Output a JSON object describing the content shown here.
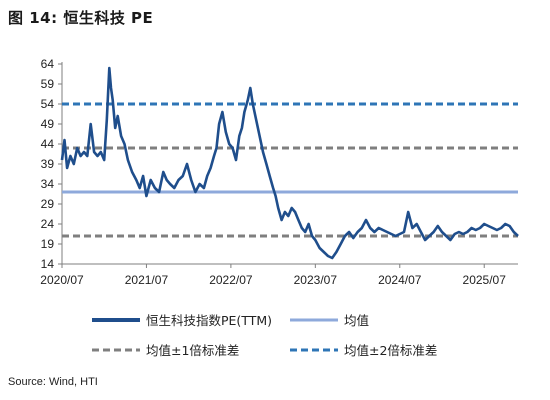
{
  "figure": {
    "title": "图 14:  恒生科技 PE",
    "source": "Source: Wind, HTI"
  },
  "chart_data": {
    "type": "line",
    "title": "恒生科技 PE",
    "x_ticks": [
      "2020/07",
      "2021/07",
      "2022/07",
      "2023/07",
      "2024/07",
      "2025/07"
    ],
    "y_ticks": [
      14,
      19,
      24,
      29,
      34,
      39,
      44,
      49,
      54,
      59,
      64
    ],
    "ylim": [
      14,
      64
    ],
    "x_range_years": [
      2020.5,
      2025.9
    ],
    "legend": [
      {
        "label": "恒生科技指数PE(TTM)",
        "color": "#1F4E8C",
        "style": "solid-thick"
      },
      {
        "label": "均值",
        "color": "#8EA9DB",
        "style": "solid"
      },
      {
        "label": "均值±1倍标准差",
        "color": "#7F7F7F",
        "style": "dashed"
      },
      {
        "label": "均值±2倍标准差",
        "color": "#2E75B6",
        "style": "dashed"
      }
    ],
    "reference_lines": [
      {
        "name": "均值",
        "value": 32,
        "color": "#8EA9DB",
        "dash": false
      },
      {
        "name": "均值+1倍标准差",
        "value": 43,
        "color": "#7F7F7F",
        "dash": true
      },
      {
        "name": "均值-1倍标准差",
        "value": 21,
        "color": "#7F7F7F",
        "dash": true
      },
      {
        "name": "均值+2倍标准差",
        "value": 54,
        "color": "#2E75B6",
        "dash": true
      }
    ],
    "series": [
      {
        "name": "恒生科技指数PE(TTM)",
        "color": "#1F4E8C",
        "x": [
          2020.5,
          2020.53,
          2020.56,
          2020.6,
          2020.64,
          2020.68,
          2020.72,
          2020.76,
          2020.8,
          2020.84,
          2020.88,
          2020.92,
          2020.96,
          2021.0,
          2021.03,
          2021.06,
          2021.08,
          2021.1,
          2021.13,
          2021.16,
          2021.2,
          2021.24,
          2021.28,
          2021.33,
          2021.38,
          2021.42,
          2021.46,
          2021.5,
          2021.55,
          2021.6,
          2021.65,
          2021.7,
          2021.74,
          2021.78,
          2021.83,
          2021.88,
          2021.93,
          2021.98,
          2022.03,
          2022.08,
          2022.13,
          2022.18,
          2022.22,
          2022.26,
          2022.3,
          2022.33,
          2022.36,
          2022.4,
          2022.44,
          2022.48,
          2022.52,
          2022.56,
          2022.6,
          2022.63,
          2022.66,
          2022.7,
          2022.73,
          2022.76,
          2022.8,
          2022.84,
          2022.88,
          2022.92,
          2022.96,
          2023.0,
          2023.03,
          2023.06,
          2023.1,
          2023.14,
          2023.18,
          2023.22,
          2023.26,
          2023.3,
          2023.34,
          2023.38,
          2023.42,
          2023.46,
          2023.5,
          2023.55,
          2023.6,
          2023.65,
          2023.7,
          2023.75,
          2023.8,
          2023.85,
          2023.9,
          2023.95,
          2024.0,
          2024.05,
          2024.1,
          2024.15,
          2024.2,
          2024.25,
          2024.3,
          2024.35,
          2024.4,
          2024.45,
          2024.5,
          2024.55,
          2024.6,
          2024.65,
          2024.7,
          2024.75,
          2024.8,
          2024.85,
          2024.9,
          2024.95,
          2025.0,
          2025.05,
          2025.1,
          2025.15,
          2025.2,
          2025.25,
          2025.3,
          2025.35,
          2025.4,
          2025.45,
          2025.5,
          2025.55,
          2025.6,
          2025.65,
          2025.7,
          2025.75,
          2025.8,
          2025.85,
          2025.9
        ],
        "y": [
          40,
          45,
          38,
          41,
          39,
          43,
          41,
          42,
          41,
          49,
          42,
          41,
          42,
          40,
          50,
          63,
          58,
          55,
          48,
          51,
          46,
          44,
          40,
          37,
          35,
          33,
          36,
          31,
          35,
          33,
          32,
          37,
          35,
          34,
          33,
          35,
          36,
          39,
          35,
          32,
          34,
          33,
          36,
          38,
          41,
          43,
          49,
          52,
          47,
          44,
          43,
          40,
          46,
          48,
          52,
          55,
          58,
          54,
          50,
          46,
          42,
          39,
          36,
          33,
          31,
          28,
          25,
          27,
          26,
          28,
          27,
          25,
          23,
          22,
          24,
          21,
          20,
          18,
          17,
          16,
          15.5,
          17,
          19,
          21,
          22,
          20.5,
          22,
          23,
          25,
          23,
          22,
          23,
          22.5,
          22,
          21.5,
          21,
          21.5,
          22,
          27,
          23,
          24,
          22,
          20,
          21,
          22,
          23.5,
          22,
          21,
          20,
          21.5,
          22,
          21.5,
          22,
          23,
          22.5,
          23,
          24,
          23.5,
          23,
          22.5,
          23,
          24,
          23.5,
          22,
          21
        ]
      }
    ]
  }
}
